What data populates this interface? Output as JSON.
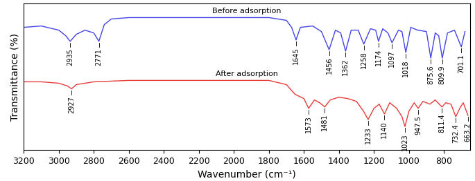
{
  "chart_data": {
    "type": "line",
    "xlabel": "Wavenumber (cm⁻¹)",
    "ylabel": "Transmittance (%)",
    "xlim": [
      3200,
      650
    ],
    "xticks": [
      3200,
      3000,
      2800,
      2600,
      2400,
      2200,
      2000,
      1800,
      1600,
      1400,
      1200,
      1000,
      800
    ],
    "ylim": [
      0,
      105
    ],
    "yticks": [],
    "tick_labels": "x",
    "grid": false,
    "series": [
      {
        "name": "Before adsorption",
        "color": "#4444e6",
        "x": [
          3200,
          3100,
          3000,
          2960,
          2935,
          2900,
          2850,
          2800,
          2771,
          2740,
          2700,
          2600,
          2400,
          2200,
          2000,
          1800,
          1700,
          1670,
          1645,
          1620,
          1550,
          1500,
          1456,
          1420,
          1390,
          1362,
          1330,
          1290,
          1258,
          1220,
          1190,
          1174,
          1150,
          1120,
          1097,
          1060,
          1040,
          1018,
          990,
          950,
          900,
          875.6,
          850,
          830,
          809.9,
          780,
          740,
          701.1,
          680
        ],
        "values": [
          88,
          89,
          86,
          82,
          78,
          83,
          86,
          84,
          78,
          90,
          94,
          95,
          95,
          95,
          95,
          95,
          93,
          88,
          79,
          88,
          89,
          85,
          72,
          86,
          84,
          71,
          86,
          86,
          76,
          87,
          86,
          78,
          87,
          84,
          77,
          86,
          85,
          70,
          88,
          86,
          85,
          66,
          84,
          82,
          66,
          84,
          86,
          74,
          85
        ],
        "peaks": [
          2935,
          2771,
          1645,
          1456,
          1362,
          1258,
          1174,
          1097,
          1018,
          875.6,
          809.9,
          701.1
        ]
      },
      {
        "name": "After adsorption",
        "color": "#e83a3a",
        "x": [
          3200,
          3100,
          3000,
          2950,
          2927,
          2900,
          2800,
          2600,
          2400,
          2200,
          2000,
          1800,
          1700,
          1650,
          1600,
          1573,
          1540,
          1510,
          1481,
          1450,
          1400,
          1350,
          1300,
          1260,
          1233,
          1200,
          1170,
          1140,
          1110,
          1070,
          1040,
          1023,
          1000,
          970,
          947.5,
          920,
          880,
          850,
          811.4,
          790,
          760,
          732.4,
          710,
          690,
          663.2
        ],
        "values": [
          49,
          49,
          48,
          46,
          44,
          47,
          49,
          50,
          50,
          50,
          50,
          50,
          47,
          40,
          37,
          30,
          36,
          34,
          31,
          36,
          38,
          37,
          35,
          28,
          22,
          30,
          33,
          26,
          34,
          30,
          24,
          17,
          28,
          34,
          30,
          35,
          33,
          36,
          31,
          34,
          33,
          24,
          30,
          34,
          25
        ],
        "peaks": [
          2927,
          1573,
          1481,
          1233,
          1140,
          1023,
          947.5,
          811.4,
          732.4,
          663.2
        ]
      }
    ]
  }
}
